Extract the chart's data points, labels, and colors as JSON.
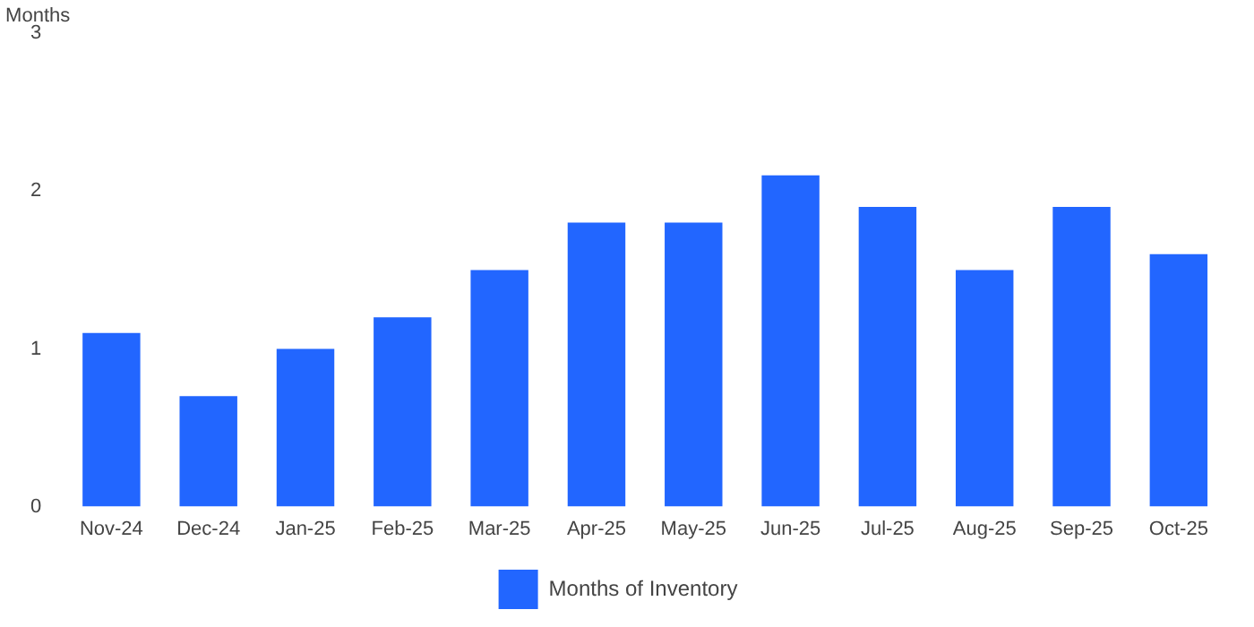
{
  "chart_data": {
    "type": "bar",
    "ylabel": "Months",
    "categories": [
      "Nov-24",
      "Dec-24",
      "Jan-25",
      "Feb-25",
      "Mar-25",
      "Apr-25",
      "May-25",
      "Jun-25",
      "Jul-25",
      "Aug-25",
      "Sep-25",
      "Oct-25"
    ],
    "series": [
      {
        "name": "Months of Inventory",
        "color": "#2266ff",
        "values": [
          1.1,
          0.7,
          1.0,
          1.2,
          1.5,
          1.8,
          1.8,
          2.1,
          1.9,
          1.5,
          1.9,
          1.6
        ]
      }
    ],
    "ylim": [
      0,
      3
    ],
    "yticks": [
      0,
      1,
      2,
      3
    ],
    "grid": false,
    "legend": "bottom"
  }
}
